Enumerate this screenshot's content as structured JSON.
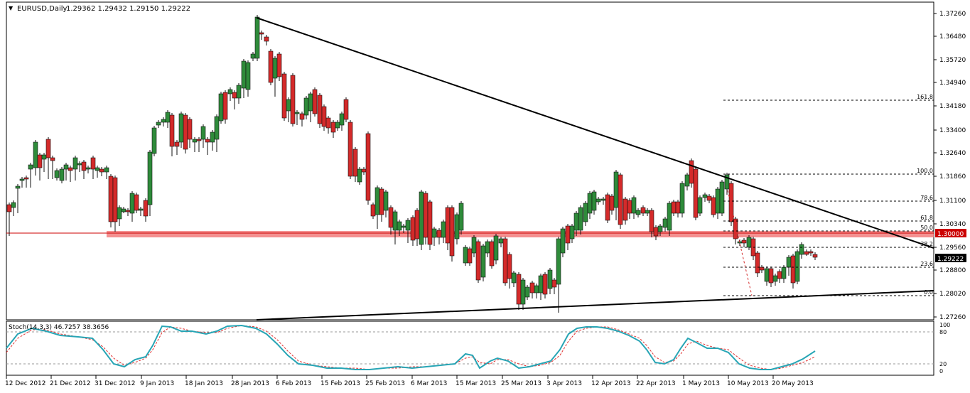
{
  "header": {
    "menu_glyph": "▼",
    "symbol_label": "EURUSD,Daily",
    "ohlc_text": "1.29362 1.29432 1.29150 1.29222"
  },
  "colors": {
    "bull": "#2e8b3a",
    "bear": "#d42a2a",
    "wick": "#111111",
    "trendline": "#000000",
    "fib": "#000000",
    "support_band": "#f26b6b",
    "current_price_line": "#cc0000",
    "stoch_main": "#27a5b5",
    "stoch_signal": "#e03030"
  },
  "price_axis": {
    "labels": [
      "1.37260",
      "1.36480",
      "1.35720",
      "1.34940",
      "1.34180",
      "1.33400",
      "1.32640",
      "1.31860",
      "1.31100",
      "1.30340",
      "1.29560",
      "1.28800",
      "1.28020",
      "1.27260"
    ],
    "badge_level": "1.30000",
    "badge_current": "1.29222"
  },
  "x_axis": {
    "labels": [
      "12 Dec 2012",
      "21 Dec 2012",
      "31 Dec 2012",
      "9 Jan 2013",
      "18 Jan 2013",
      "28 Jan 2013",
      "6 Feb 2013",
      "15 Feb 2013",
      "25 Feb 2013",
      "6 Mar 2013",
      "15 Mar 2013",
      "25 Mar 2013",
      "3 Apr 2013",
      "12 Apr 2013",
      "22 Apr 2013",
      "1 May 2013",
      "10 May 2013",
      "20 May 2013"
    ]
  },
  "fib_levels": [
    "161.8",
    "100.0",
    "78.6",
    "61.8",
    "50.0",
    "38.2",
    "23.6",
    "0.0"
  ],
  "stochastic": {
    "label": "Stoch(14,3,3) 46.7257 38.3656",
    "levels": [
      "100",
      "80",
      "20",
      "0"
    ]
  }
}
